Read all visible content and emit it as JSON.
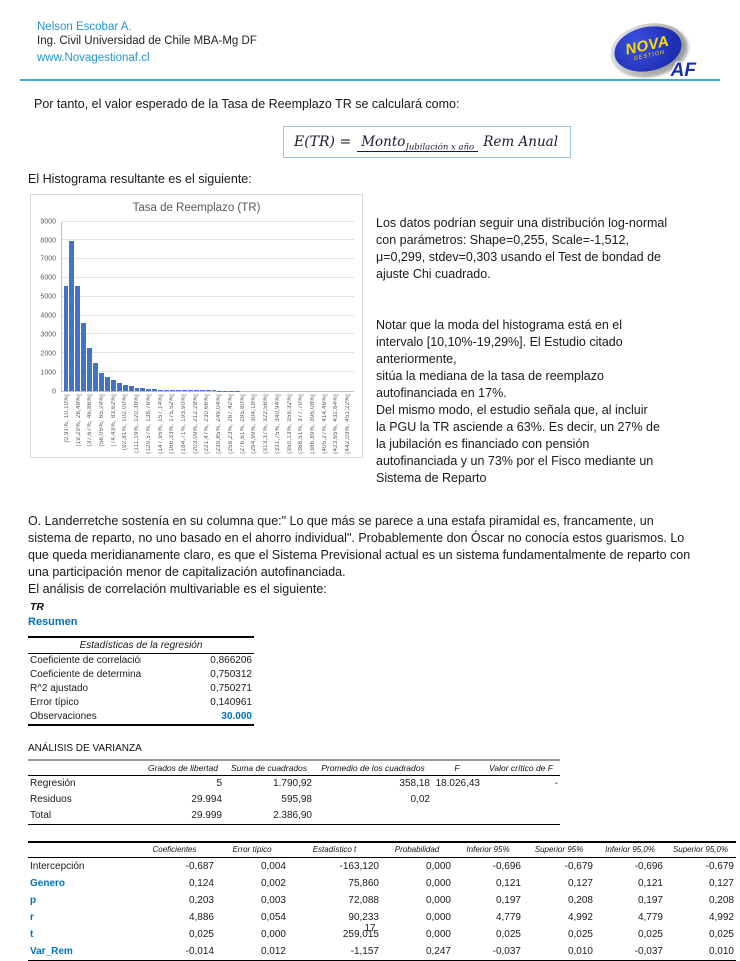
{
  "colors": {
    "accent_blue": "#2595D2",
    "rule_blue": "#41A8DC",
    "table_blue": "#0070C0",
    "bar_blue": "#4472C4",
    "logo_blue": "#1f2fb4",
    "logo_yellow": "#FFDE00"
  },
  "header": {
    "name": "Nelson Escobar A.",
    "subtitle": "Ing. Civil Universidad de Chile MBA-Mg DF",
    "website": "www.Novagestionaf.cl",
    "logo": {
      "line1": "NOVA",
      "line2": "GESTION",
      "line3": "AF"
    }
  },
  "intro": "Por tanto, el valor esperado de la Tasa de Reemplazo TR se calculará como:",
  "formula": {
    "lhs": "E(TR) =",
    "numerator_base": "Monto",
    "numerator_sub": "Jubilación x año",
    "denominator": "Rem Anual"
  },
  "hist_intro": "El Histograma resultante es el siguiente:",
  "chart_data": {
    "type": "bar",
    "title": "Tasa de Reemplazo (TR)",
    "ylabel": "",
    "xlabel": "",
    "ylim": [
      0,
      9000
    ],
    "ytick_step": 1000,
    "grid": true,
    "bar_color": "#4472C4",
    "values": [
      5570,
      7980,
      5560,
      3620,
      2250,
      1470,
      960,
      710,
      560,
      420,
      310,
      230,
      170,
      130,
      100,
      80,
      62,
      50,
      40,
      34,
      28,
      24,
      20,
      16,
      13,
      11,
      9,
      7,
      6,
      5,
      4,
      3,
      3,
      2,
      2,
      2,
      1,
      1,
      1,
      1,
      1,
      0,
      0,
      0,
      0,
      0,
      0,
      0,
      0
    ],
    "x_labels": [
      "[0,91%, 10,10%]",
      "(19,29%, 28,48%]",
      "(37,67%, 46,86%]",
      "(56,05%, 65,24%]",
      "(74,43%, 83,62%]",
      "(92,81%, 102,00%]",
      "(111,19%, 120,38%]",
      "(129,57%, 138,76%]",
      "(147,95%, 157,14%]",
      "(166,33%, 175,52%]",
      "(184,71%, 193,90%]",
      "(203,09%, 212,28%]",
      "(221,47%, 230,66%]",
      "(239,85%, 249,04%]",
      "(258,23%, 267,42%]",
      "(276,61%, 285,80%]",
      "(294,99%, 304,18%]",
      "(313,37%, 322,56%]",
      "(331,75%, 340,94%]",
      "(350,13%, 359,32%]",
      "(368,51%, 377,70%]",
      "(386,89%, 396,08%]",
      "(405,27%, 414,46%]",
      "(423,65%, 432,84%]",
      "(442,03%, 451,22%]"
    ],
    "note": "x labels shown on alternate bins; mode bin [10,10%-19,29%]"
  },
  "side_text": {
    "p1": "Los datos podrían seguir una distribución log-normal\ncon parámetros: Shape=0,255, Scale=-1,512,\nμ=0,299, stdev=0,303 usando el Test de bondad de\najuste Chi cuadrado.",
    "p2": "Notar que la moda del histograma está en el\nintervalo [10,10%-19,29%]. El Estudio citado\nanteriormente,\nsitúa la mediana de la tasa de reemplazo\nautofinanciada en 17%.\nDel mismo modo, el estudio señala que, al incluir\nla PGU la TR asciende a 63%. Es decir, un 27% de\nla jubilación es financiado con pensión\nautofinanciada y un 73% por el Fisco mediante un\nSistema de Reparto"
  },
  "paragraph": "O. Landerretche sostenía en su columna que:\" Lo que más se parece a una estafa piramidal es, francamente, un\nsistema de reparto, no uno basado en el ahorro individual\". Probablemente don Óscar no conocía estos guarismos. Lo\nque queda meridianamente claro, es que el Sistema Previsional actual es un sistema fundamentalmente de reparto con\nuna participación menor de capitalización autofinanciada.",
  "analysis_intro": "El análisis de correlación multivariable es el siguiente:",
  "tr_label": "TR",
  "resumen_label": "Resumen",
  "regression_stats": {
    "title": "Estadísticas de la regresión",
    "rows": [
      {
        "label": "Coeficiente de correlación múltiple",
        "value": "0,866206",
        "highlight": false
      },
      {
        "label": "Coeficiente de determinación R^2",
        "value": "0,750312",
        "highlight": false
      },
      {
        "label": "R^2  ajustado",
        "value": "0,750271",
        "highlight": false
      },
      {
        "label": "Error típico",
        "value": "0,140961",
        "highlight": false
      },
      {
        "label": "Observaciones",
        "value": "30.000",
        "highlight": true
      }
    ]
  },
  "anova": {
    "title": "ANÁLISIS DE VARIANZA",
    "headers": [
      "",
      "Grados de libertad",
      "Suma de cuadrados",
      "Promedio de los cuadrados",
      "F",
      "Valor crítico de F"
    ],
    "rows": [
      [
        "Regresión",
        "5",
        "1.790,92",
        "358,18",
        "18.026,43",
        "-"
      ],
      [
        "Residuos",
        "29.994",
        "595,98",
        "0,02",
        "",
        ""
      ],
      [
        "Total",
        "29.999",
        "2.386,90",
        "",
        "",
        ""
      ]
    ]
  },
  "coefficients": {
    "headers": [
      "",
      "Coeficientes",
      "Error típico",
      "Estadístico t",
      "Probabilidad",
      "Inferior 95%",
      "Superior 95%",
      "Inferior 95,0%",
      "Superior 95,0%"
    ],
    "rows": [
      {
        "label": "Intercepción",
        "blue": false,
        "values": [
          "-0,687",
          "0,004",
          "-163,120",
          "0,000",
          "-0,696",
          "-0,679",
          "-0,696",
          "-0,679"
        ]
      },
      {
        "label": "Genero",
        "blue": true,
        "values": [
          "0,124",
          "0,002",
          "75,860",
          "0,000",
          "0,121",
          "0,127",
          "0,121",
          "0,127"
        ]
      },
      {
        "label": "p",
        "blue": true,
        "values": [
          "0,203",
          "0,003",
          "72,088",
          "0,000",
          "0,197",
          "0,208",
          "0,197",
          "0,208"
        ]
      },
      {
        "label": "r",
        "blue": true,
        "values": [
          "4,886",
          "0,054",
          "90,233",
          "0,000",
          "4,779",
          "4,992",
          "4,779",
          "4,992"
        ]
      },
      {
        "label": "t",
        "blue": true,
        "values": [
          "0,025",
          "0,000",
          "259,015",
          "0,000",
          "0,025",
          "0,025",
          "0,025",
          "0,025"
        ]
      },
      {
        "label": "Var_Rem",
        "blue": true,
        "values": [
          "-0,014",
          "0,012",
          "-1,157",
          "0,247",
          "-0,037",
          "0,010",
          "-0,037",
          "0,010"
        ]
      }
    ]
  },
  "page_number": "17"
}
